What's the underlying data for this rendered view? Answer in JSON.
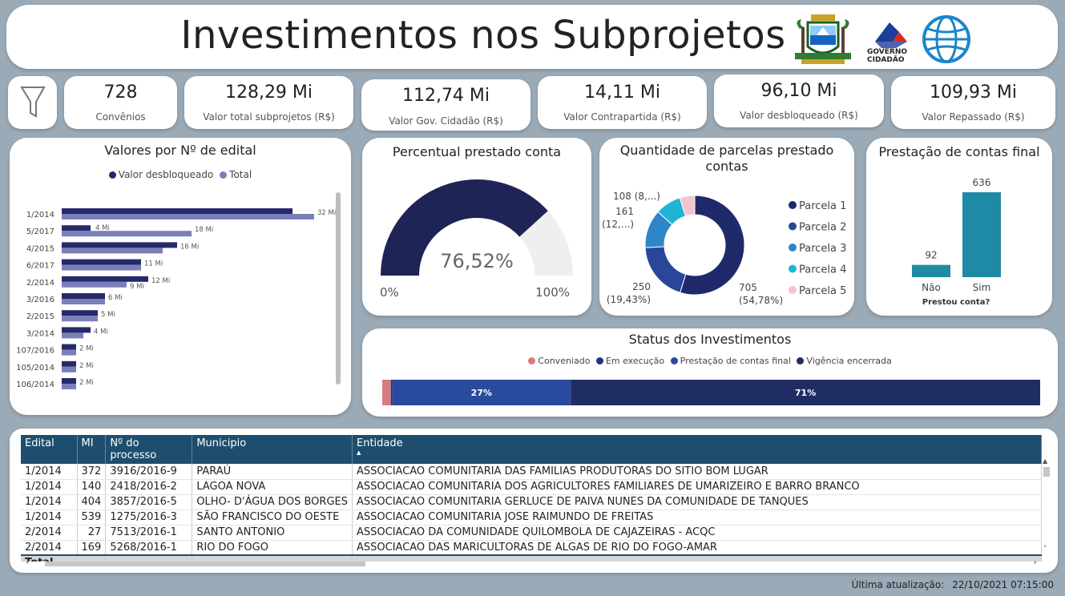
{
  "header": {
    "title": "Investimentos nos Subprojetos",
    "logo2_text_line1": "GOVERNO",
    "logo2_text_line2": "CIDADÃO"
  },
  "kpis": [
    {
      "value": "728",
      "label": "Convênios"
    },
    {
      "value": "128,29 Mi",
      "label": "Valor total subprojetos (R$)"
    },
    {
      "value": "112,74 Mi",
      "label": "Valor Gov. Cidadão (R$)"
    },
    {
      "value": "14,11 Mi",
      "label": "Valor Contrapartida (R$)"
    },
    {
      "value": "96,10 Mi",
      "label": "Valor desbloqueado (R$)"
    },
    {
      "value": "109,93 Mi",
      "label": "Valor Repassado (R$)"
    }
  ],
  "edital_chart": {
    "title": "Valores por Nº de edital",
    "legend": [
      "Valor desbloqueado",
      "Total"
    ],
    "colors": {
      "desbloqueado": "#252a6b",
      "total": "#7b7fb9"
    },
    "chart_data": {
      "type": "bar",
      "orientation": "horizontal",
      "categories": [
        "1/2014",
        "5/2017",
        "4/2015",
        "6/2017",
        "2/2014",
        "3/2016",
        "2/2015",
        "3/2014",
        "107/2016",
        "105/2014",
        "106/2014"
      ],
      "series": [
        {
          "name": "Valor desbloqueado",
          "values": [
            32,
            4,
            16,
            11,
            12,
            6,
            5,
            4,
            2,
            2,
            2
          ]
        },
        {
          "name": "Total",
          "values": [
            35,
            18,
            14,
            11,
            9,
            6,
            5,
            3,
            2,
            2,
            2
          ]
        }
      ],
      "labels": [
        [
          "32 Mi",
          "18 Mi",
          "16 Mi",
          "11 Mi",
          "12 Mi",
          "6 Mi",
          "5 Mi",
          "4 Mi",
          "2 Mi",
          "2 Mi",
          "2 Mi"
        ],
        [
          "4 Mi",
          "9 Mi"
        ]
      ]
    }
  },
  "gauge": {
    "title": "Percentual prestado conta",
    "value_label": "76,52%",
    "value": 76.52,
    "min_label": "0%",
    "max_label": "100%",
    "colors": {
      "fill": "#1f2456",
      "rest": "#efefef"
    }
  },
  "donut": {
    "title": "Quantidade de parcelas prestado contas",
    "chart_data": {
      "type": "pie",
      "categories": [
        "Parcela 1",
        "Parcela 2",
        "Parcela 3",
        "Parcela 4",
        "Parcela 5"
      ],
      "values": [
        705,
        250,
        161,
        108,
        63
      ],
      "colors": [
        "#1f2a6b",
        "#28479a",
        "#2e86c8",
        "#1fb4d6",
        "#f5c2cf"
      ],
      "data_labels": [
        {
          "value": "705",
          "pct": "(54,78%)"
        },
        {
          "value": "250",
          "pct": "(19,43%)"
        },
        {
          "value": "161",
          "pct": "(12,...)"
        },
        {
          "value": "108 (8,...)",
          "pct": ""
        }
      ]
    }
  },
  "final_chart": {
    "title": "Prestação de contas final",
    "xlabel": "Prestou conta?",
    "chart_data": {
      "type": "bar",
      "categories": [
        "Não",
        "Sim"
      ],
      "values": [
        92,
        636
      ]
    },
    "bar_color": "#1f8aa6"
  },
  "status_chart": {
    "title": "Status dos Investimentos",
    "legend": [
      {
        "label": "Conveniado",
        "color": "#d67b7f"
      },
      {
        "label": "Em execução",
        "color": "#27327a"
      },
      {
        "label": "Prestação de contas final",
        "color": "#2a4a9e"
      },
      {
        "label": "Vigência encerrada",
        "color": "#1f2d63"
      }
    ],
    "chart_data": {
      "type": "bar",
      "orientation": "horizontal-stacked-100",
      "categories": [
        "Conveniado",
        "Em execução",
        "Prestação de contas final",
        "Vigência encerrada"
      ],
      "values": [
        1.3,
        0.2,
        27,
        71
      ],
      "data_labels": [
        "",
        "",
        "27%",
        "71%"
      ]
    }
  },
  "table": {
    "columns": [
      "Edital",
      "MI",
      "Nº do processo",
      "Municipio",
      "Entidade"
    ],
    "rows": [
      [
        "1/2014",
        "372",
        "3916/2016-9",
        "PARAÚ",
        "ASSOCIACAO COMUNITARIA DAS FAMILIAS PRODUTORAS DO SITIO BOM LUGAR"
      ],
      [
        "1/2014",
        "140",
        "2418/2016-2",
        "LAGOA NOVA",
        "ASSOCIACAO COMUNITARIA DOS AGRICULTORES FAMILIARES DE UMARIZEIRO E BARRO BRANCO"
      ],
      [
        "1/2014",
        "404",
        "3857/2016-5",
        "OLHO- D'ÁGUA DOS BORGES",
        "ASSOCIACAO COMUNITARIA GERLUCE DE PAIVA NUNES DA COMUNIDADE DE TANQUES"
      ],
      [
        "1/2014",
        "539",
        "1275/2016-3",
        "SÃO FRANCISCO DO OESTE",
        "ASSOCIACAO COMUNITARIA JOSE RAIMUNDO DE FREITAS"
      ],
      [
        "2/2014",
        "27",
        "7513/2016-1",
        "SANTO ANTONIO",
        "ASSOCIACAO DA COMUNIDADE QUILOMBOLA DE CAJAZEIRAS - ACQC"
      ],
      [
        "2/2014",
        "169",
        "5268/2016-1",
        "RIO DO FOGO",
        "ASSOCIACAO DAS MARICULTORAS DE ALGAS DE RIO DO FOGO-AMAR"
      ]
    ],
    "total_label": "Total"
  },
  "footer": {
    "label": "Última atualização:",
    "value": "22/10/2021 07:15:00"
  }
}
